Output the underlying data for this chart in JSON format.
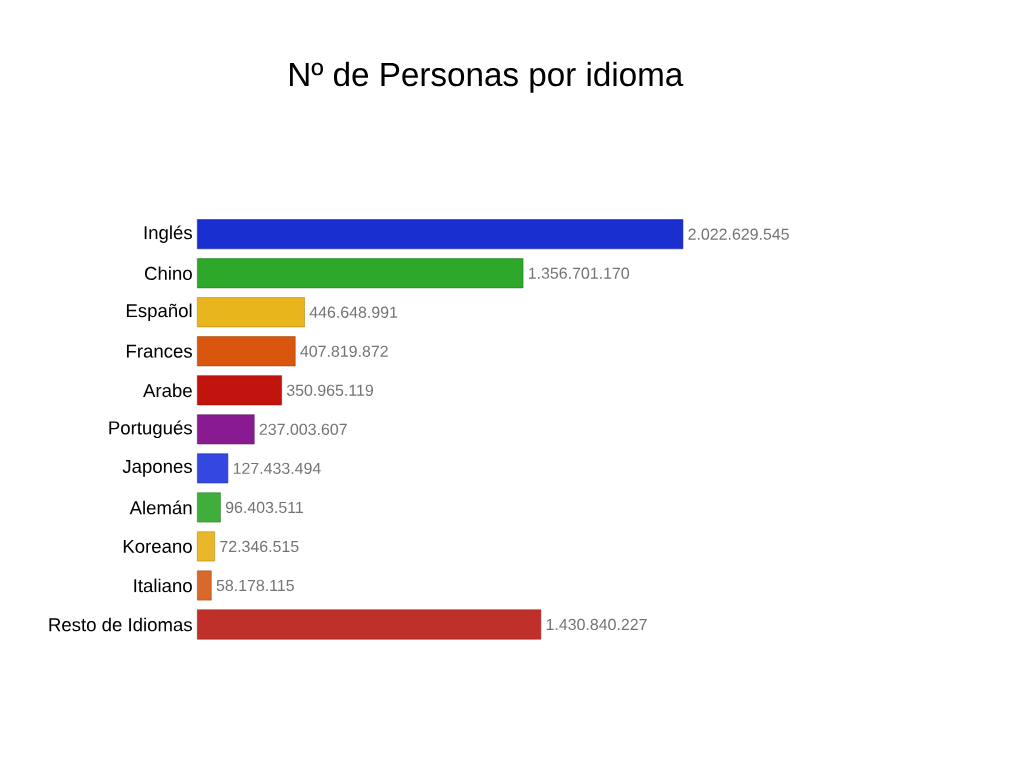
{
  "chart_data": {
    "type": "bar",
    "orientation": "horizontal",
    "title": "Nº de Personas por idioma",
    "categories": [
      "Inglés",
      "Chino",
      "Español",
      "Frances",
      "Arabe",
      "Portugués",
      "Japones",
      "Alemán",
      "Koreano",
      "Italiano",
      "Resto de Idiomas"
    ],
    "values": [
      2022629545,
      1356701170,
      446648991,
      407819872,
      350965119,
      237003607,
      127433494,
      96403511,
      72346515,
      58178115,
      1430840227
    ],
    "value_labels": [
      "2.022.629.545",
      "1.356.701.170",
      "446.648.991",
      "407.819.872",
      "350.965.119",
      "237.003.607",
      "127.433.494",
      "96.403.511",
      "72.346.515",
      "58.178.115",
      "1.430.840.227"
    ],
    "colors": [
      "#1a2fd0",
      "#2ea82a",
      "#e8b51c",
      "#d9560f",
      "#c0140c",
      "#8a1a92",
      "#3447e0",
      "#3fae3a",
      "#eab72a",
      "#d9692a",
      "#c0302a"
    ]
  }
}
